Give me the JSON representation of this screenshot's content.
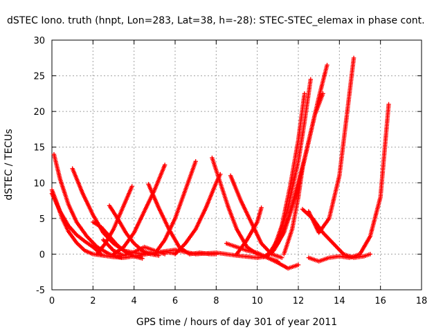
{
  "chart_data": {
    "type": "scatter",
    "title": "dSTEC Iono. truth (hnpt, Lon=283, Lat=38, h=-28): STEC-STEC_elemax in phase cont.",
    "xlabel": "GPS time / hours of day 301 of year 2011",
    "ylabel": "dSTEC  / TECUs",
    "xlim": [
      0,
      18
    ],
    "ylim": [
      -5,
      30
    ],
    "xticks": [
      0,
      2,
      4,
      6,
      8,
      10,
      12,
      14,
      16,
      18
    ],
    "yticks": [
      -5,
      0,
      5,
      10,
      15,
      20,
      25,
      30
    ],
    "grid": true,
    "marker": "+",
    "series_color": "#ff0000",
    "series": [
      {
        "x": [
          0.0,
          0.2,
          0.5,
          0.8,
          1.2,
          1.6,
          2.0,
          2.5,
          3.0,
          3.5,
          4.0
        ],
        "y": [
          9.0,
          7.5,
          5.0,
          3.2,
          1.6,
          0.5,
          0.0,
          -0.2,
          -0.4,
          -0.5,
          -0.3
        ]
      },
      {
        "x": [
          0.1,
          0.4,
          0.8,
          1.2,
          1.7,
          2.2,
          2.8,
          3.4
        ],
        "y": [
          14.0,
          10.5,
          7.0,
          4.5,
          2.5,
          1.0,
          0.0,
          -0.5
        ]
      },
      {
        "x": [
          1.0,
          1.5,
          2.0,
          2.5,
          3.0,
          3.5,
          4.0,
          4.5,
          5.0,
          5.5,
          6.0
        ],
        "y": [
          12.0,
          8.5,
          5.5,
          3.0,
          1.5,
          0.5,
          0.2,
          0.0,
          0.2,
          0.3,
          0.1
        ]
      },
      {
        "x": [
          0.0,
          0.4,
          0.8,
          1.2,
          1.6,
          2.0,
          2.4
        ],
        "y": [
          8.5,
          6.0,
          4.0,
          2.7,
          1.8,
          1.0,
          0.0
        ]
      },
      {
        "x": [
          2.0,
          2.4,
          2.8,
          3.2,
          3.6,
          4.0,
          4.4
        ],
        "y": [
          4.5,
          3.8,
          2.5,
          1.2,
          0.3,
          -0.3,
          -0.6
        ]
      },
      {
        "x": [
          2.5,
          3.0,
          3.5,
          4.0,
          4.5,
          5.0,
          5.5
        ],
        "y": [
          2.0,
          0.5,
          -0.2,
          0.3,
          1.0,
          0.5,
          0.0
        ]
      },
      {
        "x": [
          2.8,
          3.2,
          3.6,
          4.0,
          4.4,
          4.8,
          5.2
        ],
        "y": [
          6.8,
          5.0,
          3.0,
          1.5,
          0.5,
          0.0,
          -0.2
        ]
      },
      {
        "x": [
          2.2,
          2.6,
          3.0,
          3.3,
          3.6,
          3.9
        ],
        "y": [
          0.0,
          1.5,
          3.5,
          5.5,
          7.5,
          9.5
        ]
      },
      {
        "x": [
          3.0,
          3.5,
          4.0,
          4.5,
          5.0,
          5.5
        ],
        "y": [
          0.0,
          1.0,
          3.0,
          6.0,
          9.0,
          12.5
        ]
      },
      {
        "x": [
          4.7,
          5.2,
          5.7,
          6.2,
          6.7,
          7.2,
          7.7,
          8.0
        ],
        "y": [
          9.8,
          6.5,
          3.5,
          1.0,
          0.0,
          0.2,
          0.0,
          0.0
        ]
      },
      {
        "x": [
          5.0,
          5.5,
          6.0,
          6.5,
          7.0
        ],
        "y": [
          0.0,
          2.0,
          5.0,
          9.0,
          13.0
        ]
      },
      {
        "x": [
          4.0,
          5.0,
          6.0,
          7.0,
          8.0,
          9.0,
          10.0
        ],
        "y": [
          -0.3,
          0.2,
          0.6,
          0.0,
          0.2,
          -0.2,
          -0.5
        ]
      },
      {
        "x": [
          6.0,
          6.5,
          7.0,
          7.5,
          8.0,
          8.2
        ],
        "y": [
          0.0,
          1.5,
          3.5,
          6.5,
          10.0,
          11.2
        ]
      },
      {
        "x": [
          7.8,
          8.2,
          8.6,
          9.0,
          9.5,
          10.0,
          10.5,
          11.0
        ],
        "y": [
          13.5,
          10.0,
          6.5,
          3.5,
          1.0,
          0.0,
          -0.5,
          -1.0
        ]
      },
      {
        "x": [
          8.7,
          9.2,
          9.7,
          10.2,
          10.7,
          11.2
        ],
        "y": [
          11.0,
          7.5,
          4.5,
          1.5,
          0.0,
          -0.5
        ]
      },
      {
        "x": [
          8.5,
          9.0,
          9.5,
          10.0,
          10.5,
          11.0,
          11.5,
          12.0
        ],
        "y": [
          1.5,
          1.0,
          0.5,
          0.2,
          -0.5,
          -1.2,
          -2.0,
          -1.5
        ]
      },
      {
        "x": [
          9.0,
          9.5,
          10.0,
          10.2
        ],
        "y": [
          0.0,
          2.0,
          4.5,
          6.5
        ]
      },
      {
        "x": [
          10.0,
          10.5,
          11.0,
          11.5,
          12.0,
          12.4,
          12.8,
          13.2
        ],
        "y": [
          -0.5,
          -0.3,
          1.5,
          5.0,
          10.0,
          14.5,
          19.5,
          22.5
        ]
      },
      {
        "x": [
          10.3,
          10.8,
          11.3,
          11.8,
          12.2,
          12.6,
          13.0,
          13.4
        ],
        "y": [
          -0.4,
          0.5,
          3.0,
          7.5,
          12.0,
          17.0,
          22.0,
          26.5
        ]
      },
      {
        "x": [
          10.5,
          11.0,
          11.5,
          12.0,
          12.3,
          12.6
        ],
        "y": [
          -0.3,
          2.0,
          6.5,
          13.0,
          18.5,
          24.5
        ]
      },
      {
        "x": [
          10.7,
          11.2,
          11.6,
          12.0,
          12.3
        ],
        "y": [
          0.0,
          4.0,
          9.5,
          16.0,
          22.5
        ]
      },
      {
        "x": [
          11.3,
          11.7,
          12.0,
          12.2
        ],
        "y": [
          0.0,
          3.5,
          8.0,
          12.0
        ]
      },
      {
        "x": [
          12.2,
          12.7,
          13.2,
          13.7,
          14.2,
          14.7,
          15.2,
          15.5
        ],
        "y": [
          6.3,
          5.0,
          3.0,
          1.5,
          0.0,
          -0.5,
          -0.3,
          0.0
        ]
      },
      {
        "x": [
          12.5,
          13.0,
          13.5,
          14.0,
          14.3,
          14.7
        ],
        "y": [
          6.0,
          3.0,
          5.0,
          11.0,
          18.0,
          27.5
        ]
      },
      {
        "x": [
          12.5,
          13.0,
          13.5,
          14.0,
          14.5,
          15.0,
          15.5,
          16.0,
          16.4
        ],
        "y": [
          -0.5,
          -1.0,
          -0.5,
          -0.3,
          -0.5,
          0.0,
          2.5,
          8.0,
          21.0
        ]
      }
    ]
  }
}
